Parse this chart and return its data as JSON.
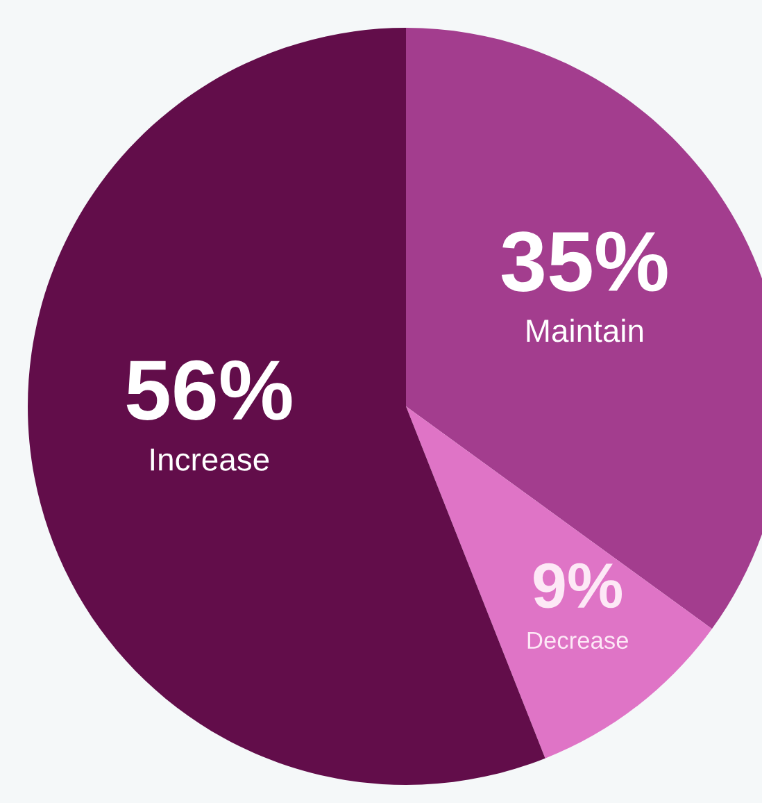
{
  "chart_data": {
    "type": "pie",
    "categories": [
      "Maintain",
      "Decrease",
      "Increase"
    ],
    "values": [
      35,
      9,
      56
    ],
    "value_labels": [
      "35%",
      "9%",
      "56%"
    ],
    "colors": [
      "#a33d8e",
      "#df74c6",
      "#620d4a"
    ]
  }
}
